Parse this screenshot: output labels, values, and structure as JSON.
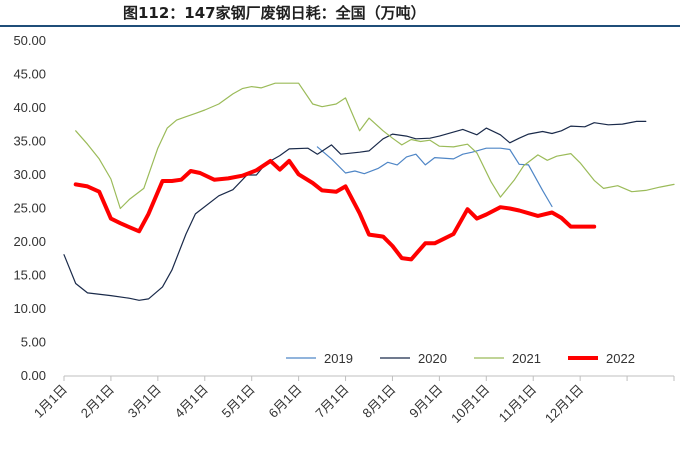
{
  "chart_data": {
    "type": "line",
    "title": "图112：147家钢厂废钢日耗：全国（万吨）",
    "xlabel": "",
    "ylabel": "",
    "ylim": [
      0,
      50
    ],
    "y_ticks": [
      "0.00",
      "5.00",
      "10.00",
      "15.00",
      "20.00",
      "25.00",
      "30.00",
      "35.00",
      "40.00",
      "45.00",
      "50.00"
    ],
    "x_ticks": [
      "1月1日",
      "2月1日",
      "3月1日",
      "4月1日",
      "5月1日",
      "6月1日",
      "7月1日",
      "8月1日",
      "9月1日",
      "10月1日",
      "11月1日",
      "12月1日"
    ],
    "x_unit": "month index (1 = Jan 1)",
    "grid": false,
    "legend_position": "bottom-right",
    "series": [
      {
        "name": "2019",
        "color": "#4f86c6",
        "width": 1.2,
        "points": [
          [
            6.4,
            34.2
          ],
          [
            6.7,
            32.4
          ],
          [
            7.0,
            30.3
          ],
          [
            7.2,
            30.6
          ],
          [
            7.4,
            30.2
          ],
          [
            7.7,
            31.0
          ],
          [
            7.9,
            31.9
          ],
          [
            8.1,
            31.5
          ],
          [
            8.3,
            32.7
          ],
          [
            8.5,
            33.1
          ],
          [
            8.7,
            31.5
          ],
          [
            8.9,
            32.6
          ],
          [
            9.3,
            32.4
          ],
          [
            9.5,
            33.1
          ],
          [
            9.7,
            33.4
          ],
          [
            10.0,
            34.0
          ],
          [
            10.3,
            34.0
          ],
          [
            10.5,
            33.8
          ],
          [
            10.7,
            31.6
          ],
          [
            10.9,
            31.5
          ],
          [
            11.2,
            27.7
          ],
          [
            11.4,
            25.3
          ]
        ]
      },
      {
        "name": "2020",
        "color": "#1a2a4a",
        "width": 1.2,
        "points": [
          [
            1.0,
            18.1
          ],
          [
            1.25,
            13.8
          ],
          [
            1.5,
            12.4
          ],
          [
            2.0,
            12.0
          ],
          [
            2.4,
            11.6
          ],
          [
            2.6,
            11.3
          ],
          [
            2.8,
            11.5
          ],
          [
            3.1,
            13.3
          ],
          [
            3.3,
            15.8
          ],
          [
            3.6,
            21.2
          ],
          [
            3.8,
            24.2
          ],
          [
            4.3,
            26.9
          ],
          [
            4.6,
            27.8
          ],
          [
            4.9,
            30.0
          ],
          [
            5.1,
            30.0
          ],
          [
            5.3,
            31.7
          ],
          [
            5.6,
            32.9
          ],
          [
            5.8,
            33.9
          ],
          [
            6.2,
            34.0
          ],
          [
            6.4,
            33.1
          ],
          [
            6.7,
            34.5
          ],
          [
            6.9,
            33.1
          ],
          [
            7.3,
            33.4
          ],
          [
            7.5,
            33.6
          ],
          [
            7.8,
            35.4
          ],
          [
            8.0,
            36.1
          ],
          [
            8.3,
            35.8
          ],
          [
            8.5,
            35.4
          ],
          [
            8.8,
            35.5
          ],
          [
            9.0,
            35.8
          ],
          [
            9.3,
            36.4
          ],
          [
            9.5,
            36.8
          ],
          [
            9.8,
            36.0
          ],
          [
            10.0,
            37.0
          ],
          [
            10.3,
            36.0
          ],
          [
            10.5,
            34.8
          ],
          [
            10.7,
            35.5
          ],
          [
            10.9,
            36.1
          ],
          [
            11.2,
            36.5
          ],
          [
            11.4,
            36.2
          ],
          [
            11.6,
            36.6
          ],
          [
            11.8,
            37.3
          ],
          [
            12.1,
            37.2
          ],
          [
            12.3,
            37.8
          ],
          [
            12.6,
            37.5
          ],
          [
            12.9,
            37.6
          ],
          [
            13.2,
            38.0
          ],
          [
            13.4,
            38.0
          ]
        ]
      },
      {
        "name": "2021",
        "color": "#9bbb59",
        "width": 1.2,
        "points": [
          [
            1.25,
            36.6
          ],
          [
            1.5,
            34.6
          ],
          [
            1.75,
            32.4
          ],
          [
            2.0,
            29.4
          ],
          [
            2.2,
            25.0
          ],
          [
            2.4,
            26.4
          ],
          [
            2.7,
            28.0
          ],
          [
            3.0,
            34.0
          ],
          [
            3.2,
            37.0
          ],
          [
            3.4,
            38.2
          ],
          [
            3.6,
            38.7
          ],
          [
            3.8,
            39.2
          ],
          [
            4.0,
            39.7
          ],
          [
            4.3,
            40.6
          ],
          [
            4.6,
            42.1
          ],
          [
            4.8,
            42.9
          ],
          [
            5.0,
            43.2
          ],
          [
            5.2,
            43.0
          ],
          [
            5.5,
            43.7
          ],
          [
            5.8,
            43.7
          ],
          [
            6.0,
            43.7
          ],
          [
            6.3,
            40.6
          ],
          [
            6.5,
            40.2
          ],
          [
            6.8,
            40.6
          ],
          [
            7.0,
            41.5
          ],
          [
            7.3,
            36.6
          ],
          [
            7.5,
            38.5
          ],
          [
            7.8,
            36.6
          ],
          [
            8.0,
            35.5
          ],
          [
            8.2,
            34.5
          ],
          [
            8.4,
            35.3
          ],
          [
            8.6,
            35.0
          ],
          [
            8.8,
            35.2
          ],
          [
            9.0,
            34.3
          ],
          [
            9.3,
            34.2
          ],
          [
            9.6,
            34.6
          ],
          [
            9.8,
            33.3
          ],
          [
            10.1,
            29.0
          ],
          [
            10.3,
            26.7
          ],
          [
            10.6,
            29.3
          ],
          [
            10.8,
            31.4
          ],
          [
            11.1,
            33.0
          ],
          [
            11.3,
            32.2
          ],
          [
            11.5,
            32.8
          ],
          [
            11.8,
            33.2
          ],
          [
            12.0,
            31.8
          ],
          [
            12.3,
            29.2
          ],
          [
            12.5,
            28.0
          ],
          [
            12.8,
            28.4
          ],
          [
            13.1,
            27.5
          ],
          [
            13.4,
            27.7
          ],
          [
            13.7,
            28.2
          ],
          [
            14.0,
            28.6
          ]
        ]
      },
      {
        "name": "2022",
        "color": "#ff0000",
        "width": 4,
        "points": [
          [
            1.25,
            28.6
          ],
          [
            1.5,
            28.3
          ],
          [
            1.75,
            27.5
          ],
          [
            2.0,
            23.5
          ],
          [
            2.2,
            22.8
          ],
          [
            2.4,
            22.2
          ],
          [
            2.6,
            21.6
          ],
          [
            2.8,
            24.2
          ],
          [
            3.1,
            29.1
          ],
          [
            3.3,
            29.1
          ],
          [
            3.5,
            29.3
          ],
          [
            3.7,
            30.6
          ],
          [
            3.9,
            30.3
          ],
          [
            4.2,
            29.3
          ],
          [
            4.5,
            29.5
          ],
          [
            4.8,
            29.9
          ],
          [
            5.1,
            30.7
          ],
          [
            5.4,
            32.1
          ],
          [
            5.6,
            30.8
          ],
          [
            5.8,
            32.1
          ],
          [
            6.0,
            30.1
          ],
          [
            6.3,
            28.8
          ],
          [
            6.5,
            27.7
          ],
          [
            6.8,
            27.5
          ],
          [
            7.0,
            28.3
          ],
          [
            7.3,
            24.3
          ],
          [
            7.5,
            21.1
          ],
          [
            7.8,
            20.8
          ],
          [
            8.0,
            19.4
          ],
          [
            8.2,
            17.6
          ],
          [
            8.4,
            17.4
          ],
          [
            8.7,
            19.8
          ],
          [
            8.9,
            19.8
          ],
          [
            9.1,
            20.5
          ],
          [
            9.3,
            21.2
          ],
          [
            9.6,
            24.9
          ],
          [
            9.8,
            23.5
          ],
          [
            10.0,
            24.1
          ],
          [
            10.3,
            25.2
          ],
          [
            10.5,
            25.0
          ],
          [
            10.7,
            24.7
          ],
          [
            10.9,
            24.3
          ],
          [
            11.1,
            23.9
          ],
          [
            11.4,
            24.4
          ],
          [
            11.6,
            23.6
          ],
          [
            11.8,
            22.3
          ],
          [
            12.1,
            22.3
          ],
          [
            12.3,
            22.3
          ]
        ]
      }
    ]
  }
}
